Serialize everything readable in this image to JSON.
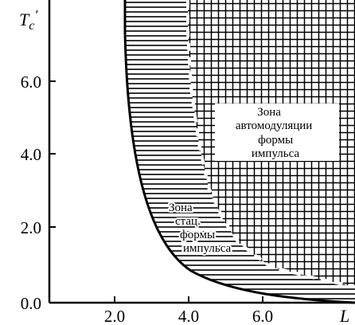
{
  "axes": {
    "y_name": "T",
    "y_name_sub": "c",
    "y_name_prime": "′",
    "x_name": "L",
    "x_ticks": [
      "2.0",
      "4.0",
      "6.0"
    ],
    "y_ticks": [
      "0.0",
      "2.0",
      "4.0",
      "6.0"
    ]
  },
  "zones": {
    "autoModulation": [
      "Зона",
      "автомодуляции",
      "формы",
      "импульса"
    ],
    "stationary": [
      "Зона",
      "стац.",
      "формы",
      "импульса"
    ]
  },
  "colors": {
    "ink": "#000000",
    "background": "#ffffff"
  }
}
